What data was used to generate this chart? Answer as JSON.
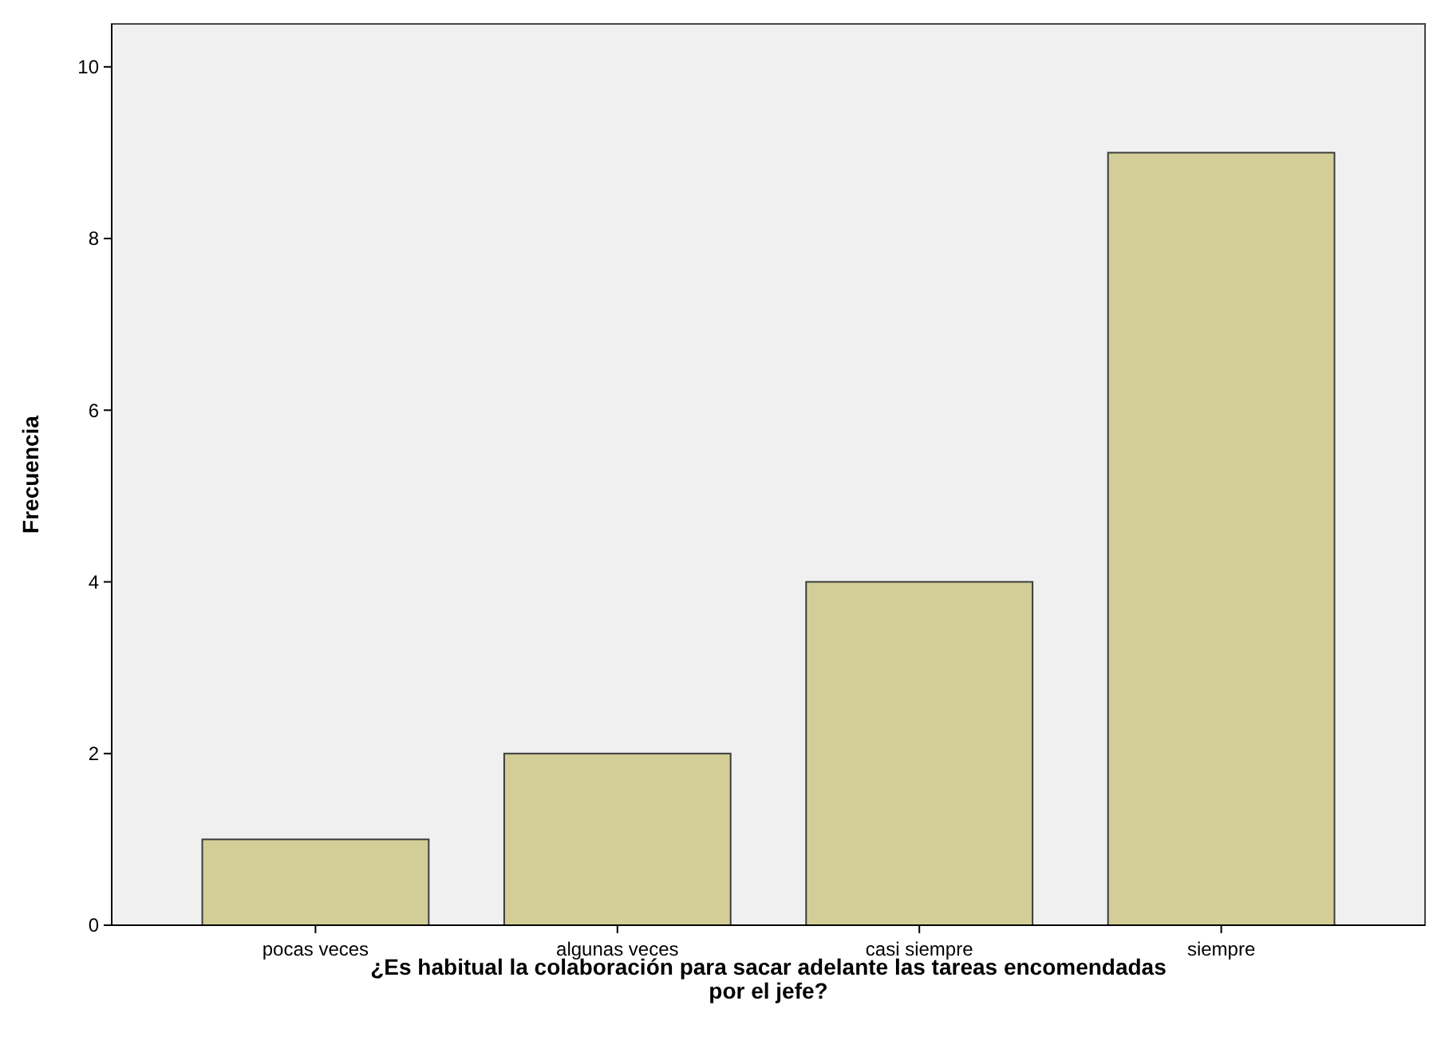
{
  "chart_data": {
    "type": "bar",
    "xlabel": "¿Es habitual la colaboración para sacar adelante las tareas encomendadas por el jefe?",
    "ylabel": "Frecuencia",
    "categories": [
      "pocas veces",
      "algunas veces",
      "casi siempre",
      "siempre"
    ],
    "values": [
      1,
      2,
      4,
      9
    ],
    "color": "#d3ce97",
    "ylim": [
      0,
      10.5
    ],
    "yticks": [
      0,
      2,
      4,
      6,
      8,
      10
    ],
    "grid": false
  }
}
